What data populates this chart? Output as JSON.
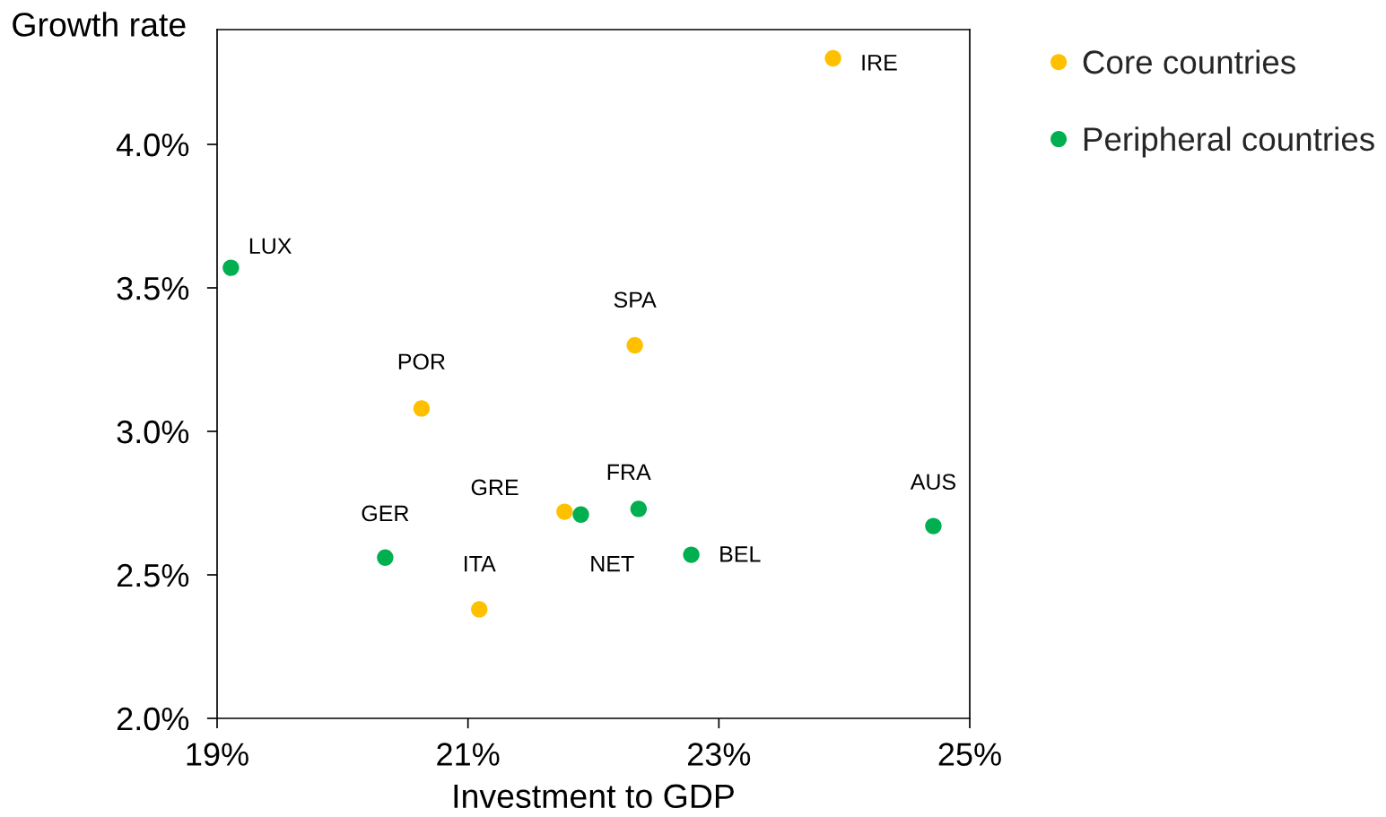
{
  "chart_data": {
    "type": "scatter",
    "xlabel": "Investment to GDP",
    "ylabel": "Growth rate",
    "xlim": [
      19,
      25
    ],
    "xticks": [
      {
        "value": 19,
        "label": "19%"
      },
      {
        "value": 21,
        "label": "21%"
      },
      {
        "value": 23,
        "label": "23%"
      },
      {
        "value": 25,
        "label": "25%"
      }
    ],
    "ylim": [
      2.0,
      4.4
    ],
    "yticks": [
      {
        "value": 2.0,
        "label": "2.0%"
      },
      {
        "value": 2.5,
        "label": "2.5%"
      },
      {
        "value": 3.0,
        "label": "3.0%"
      },
      {
        "value": 3.5,
        "label": "3.5%"
      },
      {
        "value": 4.0,
        "label": "4.0%"
      }
    ],
    "series": [
      {
        "name": "Core countries",
        "color": "#ffc000",
        "x": [
          23.91,
          22.33,
          20.63,
          21.77,
          21.09
        ],
        "values": [
          4.3,
          3.3,
          3.08,
          2.72,
          2.38
        ]
      },
      {
        "name": "Peripheral countries",
        "color": "#00b050",
        "x": [
          19.11,
          21.9,
          22.36,
          24.71,
          22.78,
          20.34
        ],
        "values": [
          3.57,
          2.71,
          2.73,
          2.67,
          2.57,
          2.56
        ]
      }
    ],
    "annotations": [
      {
        "text": "IRE",
        "x": 23.91,
        "y": 4.3
      },
      {
        "text": "SPA",
        "x": 22.33,
        "y": 3.3
      },
      {
        "text": "POR",
        "x": 20.63,
        "y": 3.08
      },
      {
        "text": "GRE",
        "x": 21.77,
        "y": 2.72
      },
      {
        "text": "ITA",
        "x": 21.09,
        "y": 2.38
      },
      {
        "text": "LUX",
        "x": 19.11,
        "y": 3.57
      },
      {
        "text": "NET",
        "x": 21.9,
        "y": 2.71
      },
      {
        "text": "FRA",
        "x": 22.36,
        "y": 2.73
      },
      {
        "text": "AUS",
        "x": 24.71,
        "y": 2.67
      },
      {
        "text": "BEL",
        "x": 22.78,
        "y": 2.57
      },
      {
        "text": "GER",
        "x": 20.34,
        "y": 2.56
      }
    ],
    "marker": "circle",
    "legend": "top right",
    "grid": false
  }
}
